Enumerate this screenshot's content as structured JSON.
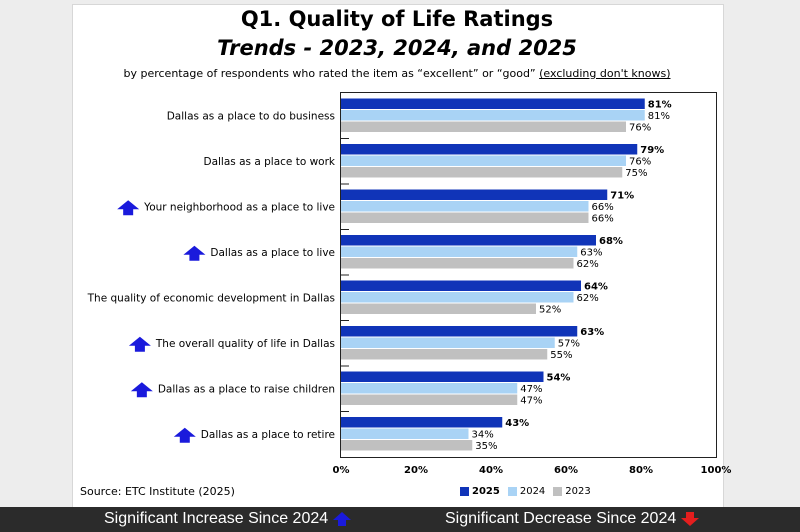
{
  "title": "Q1. Quality of Life Ratings",
  "subtitle": "Trends - 2023, 2024, and 2025",
  "note_main": "by percentage of respondents who rated the item as “excellent” or “good” ",
  "note_underlined": "(excluding don't knows)",
  "source": "Source:   ETC Institute (2025)",
  "footer": {
    "increase_label": "Significant Increase Since 2024",
    "decrease_label": "Significant Decrease Since 2024"
  },
  "colors": {
    "s2025": "#1034b8",
    "s2024": "#a9d3f5",
    "s2023": "#c0c0c0",
    "arrow_up": "#1a1adc",
    "arrow_down": "#e41e1e"
  },
  "chart_data": {
    "type": "bar",
    "orientation": "horizontal",
    "title": "Q1. Quality of Life Ratings",
    "xlim": [
      0,
      100
    ],
    "x_ticks": [
      "0%",
      "20%",
      "40%",
      "60%",
      "80%",
      "100%"
    ],
    "legend_position": "bottom",
    "categories": [
      "Dallas as a place to do business",
      "Dallas as a place to work",
      "Your neighborhood as a place to live",
      "Dallas as a place to live",
      "The quality of economic development in Dallas",
      "The overall quality of life in Dallas",
      "Dallas as a place to raise children",
      "Dallas as a place to retire"
    ],
    "significant_increase": [
      false,
      false,
      true,
      true,
      false,
      true,
      true,
      true
    ],
    "series": [
      {
        "name": "2025",
        "values": [
          81,
          79,
          71,
          68,
          64,
          63,
          54,
          43
        ]
      },
      {
        "name": "2024",
        "values": [
          81,
          76,
          66,
          63,
          62,
          57,
          47,
          34
        ]
      },
      {
        "name": "2023",
        "values": [
          76,
          75,
          66,
          62,
          52,
          55,
          47,
          35
        ]
      }
    ]
  }
}
